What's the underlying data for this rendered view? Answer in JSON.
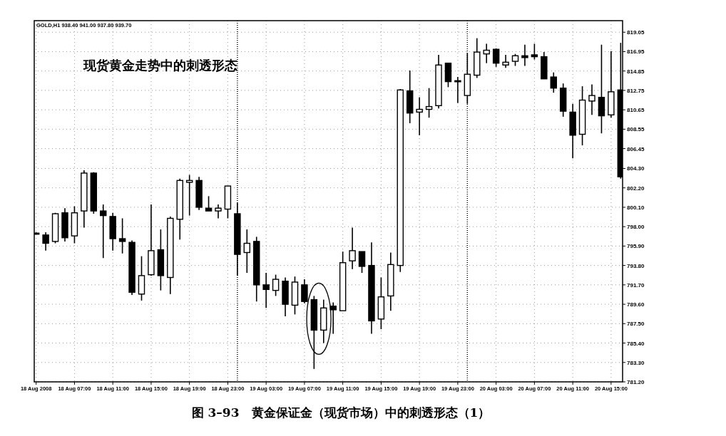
{
  "chart_data": {
    "type": "candlestick",
    "title": "图 3–93　黄金保证金（现货市场）中的刺透形态（1）",
    "annotations": [
      "GOLD,H1 938.40 941.00 937.80 939.70",
      "现货黄金走势中的刺透形态"
    ],
    "x": [
      "2008-08-18T03:00",
      "2008-08-18T04:00",
      "2008-08-18T05:00",
      "2008-08-18T06:00",
      "2008-08-18T07:00",
      "2008-08-18T08:00",
      "2008-08-18T09:00",
      "2008-08-18T10:00",
      "2008-08-18T11:00",
      "2008-08-18T12:00",
      "2008-08-18T13:00",
      "2008-08-18T14:00",
      "2008-08-18T15:00",
      "2008-08-18T16:00",
      "2008-08-18T17:00",
      "2008-08-18T18:00",
      "2008-08-18T19:00",
      "2008-08-18T20:00",
      "2008-08-18T21:00",
      "2008-08-18T22:00",
      "2008-08-18T23:00",
      "2008-08-19T00:00",
      "2008-08-19T01:00",
      "2008-08-19T02:00",
      "2008-08-19T03:00",
      "2008-08-19T04:00",
      "2008-08-19T05:00",
      "2008-08-19T06:00",
      "2008-08-19T07:00",
      "2008-08-19T08:00",
      "2008-08-19T09:00",
      "2008-08-19T10:00",
      "2008-08-19T11:00",
      "2008-08-19T12:00",
      "2008-08-19T13:00",
      "2008-08-19T14:00",
      "2008-08-19T15:00",
      "2008-08-19T16:00",
      "2008-08-19T17:00",
      "2008-08-19T18:00",
      "2008-08-19T19:00",
      "2008-08-19T20:00",
      "2008-08-19T21:00",
      "2008-08-19T22:00",
      "2008-08-19T23:00",
      "2008-08-20T00:00",
      "2008-08-20T01:00",
      "2008-08-20T02:00",
      "2008-08-20T03:00",
      "2008-08-20T04:00",
      "2008-08-20T05:00",
      "2008-08-20T06:00",
      "2008-08-20T07:00",
      "2008-08-20T08:00",
      "2008-08-20T09:00",
      "2008-08-20T10:00",
      "2008-08-20T11:00",
      "2008-08-20T12:00",
      "2008-08-20T13:00",
      "2008-08-20T14:00",
      "2008-08-20T15:00",
      "2008-08-20T16:00"
    ],
    "ohlc": [
      [
        797.3,
        797.4,
        797.2,
        797.3
      ],
      [
        797.1,
        797.4,
        795.4,
        796.2
      ],
      [
        796.4,
        799.5,
        796.2,
        799.4
      ],
      [
        799.5,
        800.0,
        796.4,
        796.8
      ],
      [
        797.0,
        800.2,
        796.2,
        799.5
      ],
      [
        799.7,
        804.1,
        797.9,
        803.8
      ],
      [
        803.8,
        803.9,
        799.4,
        799.7
      ],
      [
        799.7,
        800.4,
        794.6,
        799.2
      ],
      [
        799.1,
        799.5,
        795.4,
        796.7
      ],
      [
        796.7,
        798.9,
        795.1,
        796.4
      ],
      [
        796.3,
        796.5,
        790.6,
        790.9
      ],
      [
        790.7,
        794.8,
        790.0,
        792.7
      ],
      [
        792.8,
        800.4,
        792.7,
        795.4
      ],
      [
        795.5,
        797.7,
        791.1,
        792.7
      ],
      [
        792.5,
        799.1,
        790.7,
        798.9
      ],
      [
        798.8,
        803.2,
        796.6,
        803.0
      ],
      [
        802.8,
        803.6,
        799.2,
        803.0
      ],
      [
        803.0,
        803.4,
        799.8,
        800.1
      ],
      [
        800.0,
        801.3,
        799.7,
        799.7
      ],
      [
        799.7,
        800.4,
        798.9,
        800.0
      ],
      [
        799.9,
        802.4,
        798.9,
        802.4
      ],
      [
        799.4,
        800.6,
        792.7,
        795.0
      ],
      [
        795.2,
        797.7,
        793.0,
        796.2
      ],
      [
        796.4,
        796.9,
        789.9,
        791.7
      ],
      [
        791.7,
        793.0,
        789.2,
        791.2
      ],
      [
        791.1,
        792.8,
        790.5,
        792.3
      ],
      [
        792.1,
        792.5,
        788.3,
        789.6
      ],
      [
        789.5,
        792.6,
        788.5,
        792.0
      ],
      [
        791.7,
        792.3,
        789.7,
        789.9
      ],
      [
        790.1,
        790.5,
        782.6,
        786.8
      ],
      [
        786.8,
        790.1,
        785.4,
        789.2
      ],
      [
        789.4,
        789.8,
        786.4,
        789.0
      ],
      [
        788.9,
        795.3,
        788.9,
        794.1
      ],
      [
        794.3,
        797.9,
        793.4,
        795.4
      ],
      [
        795.3,
        795.3,
        793.0,
        793.7
      ],
      [
        793.8,
        796.3,
        786.4,
        787.8
      ],
      [
        788.0,
        792.5,
        786.9,
        790.4
      ],
      [
        790.5,
        795.2,
        788.9,
        793.9
      ],
      [
        793.8,
        812.9,
        793.1,
        812.8
      ],
      [
        812.7,
        814.9,
        809.2,
        810.3
      ],
      [
        810.4,
        812.0,
        807.9,
        810.7
      ],
      [
        810.7,
        813.0,
        809.8,
        811.0
      ],
      [
        811.1,
        816.6,
        810.8,
        815.5
      ],
      [
        815.7,
        815.7,
        813.1,
        813.7
      ],
      [
        813.8,
        814.2,
        811.4,
        813.7
      ],
      [
        812.2,
        816.8,
        811.3,
        814.5
      ],
      [
        814.4,
        818.4,
        814.1,
        816.9
      ],
      [
        816.7,
        817.8,
        815.7,
        817.1
      ],
      [
        817.2,
        817.3,
        815.3,
        815.7
      ],
      [
        815.5,
        816.6,
        815.2,
        815.8
      ],
      [
        815.9,
        816.7,
        815.4,
        816.5
      ],
      [
        816.5,
        817.7,
        815.4,
        816.3
      ],
      [
        816.6,
        817.8,
        816.1,
        816.4
      ],
      [
        816.4,
        816.9,
        814.0,
        814.0
      ],
      [
        814.2,
        814.7,
        812.5,
        813.0
      ],
      [
        813.0,
        813.5,
        809.9,
        810.5
      ],
      [
        810.4,
        811.3,
        805.4,
        807.9
      ],
      [
        808.0,
        813.2,
        806.8,
        811.7
      ],
      [
        811.6,
        813.4,
        810.1,
        812.2
      ],
      [
        812.0,
        817.7,
        808.1,
        810.0
      ],
      [
        810.1,
        817.0,
        809.8,
        812.6
      ],
      [
        812.8,
        817.9,
        803.2,
        803.4
      ]
    ],
    "xlim": [
      "2008-08-18T02:48",
      "2008-08-20T16:12"
    ],
    "ylim": [
      781.2,
      820.3
    ],
    "xticks": [
      {
        "value": "2008-08-18T03:00",
        "label": "18 Aug 2008"
      },
      {
        "value": "2008-08-18T07:00",
        "label": "18 Aug 07:00"
      },
      {
        "value": "2008-08-18T11:00",
        "label": "18 Aug 11:00"
      },
      {
        "value": "2008-08-18T15:00",
        "label": "18 Aug 15:00"
      },
      {
        "value": "2008-08-18T19:00",
        "label": "18 Aug 19:00"
      },
      {
        "value": "2008-08-18T23:00",
        "label": "18 Aug 23:00"
      },
      {
        "value": "2008-08-19T03:00",
        "label": "19 Aug 03:00"
      },
      {
        "value": "2008-08-19T07:00",
        "label": "19 Aug 07:00"
      },
      {
        "value": "2008-08-19T11:00",
        "label": "19 Aug 11:00"
      },
      {
        "value": "2008-08-19T15:00",
        "label": "19 Aug 15:00"
      },
      {
        "value": "2008-08-19T19:00",
        "label": "19 Aug 19:00"
      },
      {
        "value": "2008-08-19T23:00",
        "label": "19 Aug 23:00"
      },
      {
        "value": "2008-08-20T03:00",
        "label": "20 Aug 03:00"
      },
      {
        "value": "2008-08-20T07:00",
        "label": "20 Aug 07:00"
      },
      {
        "value": "2008-08-20T11:00",
        "label": "20 Aug 11:00"
      },
      {
        "value": "2008-08-20T15:00",
        "label": "20 Aug 15:00"
      }
    ],
    "yticks": [
      {
        "value": 819.05,
        "label": "819.05"
      },
      {
        "value": 816.95,
        "label": "816.95"
      },
      {
        "value": 814.85,
        "label": "814.85"
      },
      {
        "value": 812.75,
        "label": "812.75"
      },
      {
        "value": 810.65,
        "label": "810.65"
      },
      {
        "value": 808.55,
        "label": "808.55"
      },
      {
        "value": 806.45,
        "label": "806.45"
      },
      {
        "value": 804.3,
        "label": "804.30"
      },
      {
        "value": 802.2,
        "label": "802.20"
      },
      {
        "value": 800.1,
        "label": "800.10"
      },
      {
        "value": 798,
        "label": "798.00"
      },
      {
        "value": 795.9,
        "label": "795.90"
      },
      {
        "value": 793.8,
        "label": "793.80"
      },
      {
        "value": 791.7,
        "label": "791.70"
      },
      {
        "value": 789.6,
        "label": "789.60"
      },
      {
        "value": 787.5,
        "label": "787.50"
      },
      {
        "value": 785.4,
        "label": "785.40"
      },
      {
        "value": 783.3,
        "label": "783.30"
      },
      {
        "value": 781.2,
        "label": "781.20"
      }
    ],
    "grid": true,
    "ref_lines": [
      {
        "axis": "x",
        "value": "2008-08-19T00:00",
        "color": "#000000",
        "line_style": "dotted"
      },
      {
        "axis": "x",
        "value": "2008-08-20T00:00",
        "color": "#000000",
        "line_style": "dotted"
      }
    ]
  }
}
